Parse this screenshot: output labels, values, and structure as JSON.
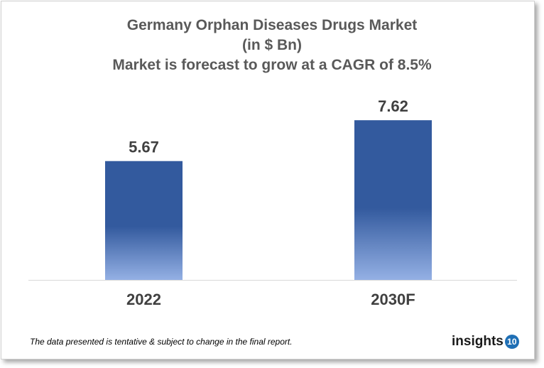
{
  "chart_data": {
    "type": "bar",
    "title": [
      "Germany Orphan Diseases Drugs Market",
      "(in $ Bn)",
      "Market is forecast to grow at a CAGR of 8.5%"
    ],
    "categories": [
      "2022",
      "2030F"
    ],
    "values": [
      5.67,
      7.62
    ],
    "data_labels": [
      "5.67",
      "7.62"
    ],
    "xlabel": "",
    "ylabel": "",
    "ylim": [
      0,
      10
    ],
    "grid": false,
    "legend": "none",
    "colors": {
      "bar_top": "#335a9e",
      "bar_bottom": "#94b0e4"
    }
  },
  "footnote": "The data presented is tentative & subject to change in the final report.",
  "logo": {
    "text": "insights",
    "badge": "10"
  }
}
